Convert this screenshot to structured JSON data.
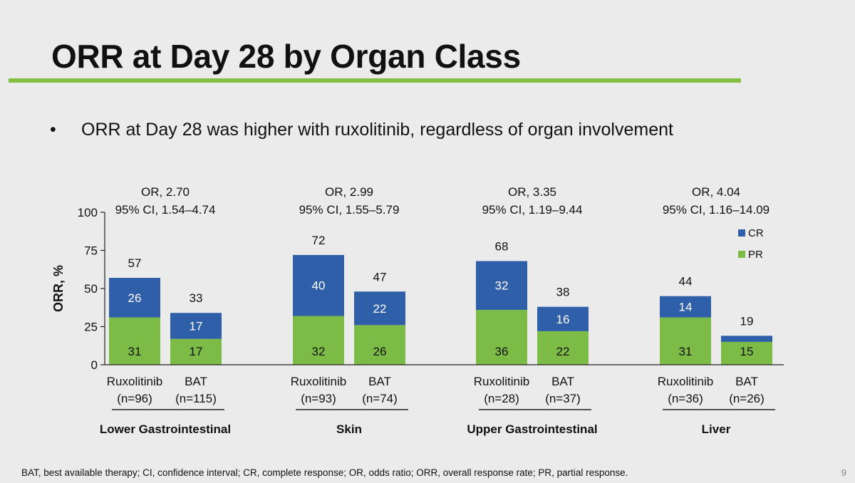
{
  "slide": {
    "title": "ORR at Day 28 by Organ Class",
    "bullet_marker": "•",
    "bullet": "ORR at Day 28 was higher with ruxolitinib, regardless of organ involvement",
    "footnote": "BAT, best available therapy; CI, confidence interval; CR, complete response; OR, odds ratio; ORR, overall response rate; PR, partial response.",
    "page_number": "9"
  },
  "colors": {
    "accent_rule": "#82bf42",
    "cr": "#2e5fa8",
    "pr": "#7cbb46"
  },
  "chart_data": {
    "type": "bar",
    "stacked": true,
    "ylabel": "ORR, %",
    "ylim": [
      0,
      100
    ],
    "yticks": [
      0,
      25,
      50,
      75,
      100
    ],
    "legend": {
      "placement": "top-right",
      "entries": [
        {
          "name": "CR",
          "color": "#2e5fa8"
        },
        {
          "name": "PR",
          "color": "#7cbb46"
        }
      ]
    },
    "groups": [
      {
        "name": "Lower Gastrointestinal",
        "or_text": "OR, 2.70",
        "ci_text": "95% CI, 1.54–4.74",
        "bars": [
          {
            "arm": "Ruxolitinib",
            "n": "(n=96)",
            "total": 57,
            "cr": 26,
            "pr": 31
          },
          {
            "arm": "BAT",
            "n": "(n=115)",
            "total": 33,
            "cr": 17,
            "pr": 17
          }
        ]
      },
      {
        "name": "Skin",
        "or_text": "OR, 2.99",
        "ci_text": "95% CI, 1.55–5.79",
        "bars": [
          {
            "arm": "Ruxolitinib",
            "n": "(n=93)",
            "total": 72,
            "cr": 40,
            "pr": 32
          },
          {
            "arm": "BAT",
            "n": "(n=74)",
            "total": 47,
            "cr": 22,
            "pr": 26
          }
        ]
      },
      {
        "name": "Upper Gastrointestinal",
        "or_text": "OR, 3.35",
        "ci_text": "95% CI, 1.19–9.44",
        "bars": [
          {
            "arm": "Ruxolitinib",
            "n": "(n=28)",
            "total": 68,
            "cr": 32,
            "pr": 36
          },
          {
            "arm": "BAT",
            "n": "(n=37)",
            "total": 38,
            "cr": 16,
            "pr": 22
          }
        ]
      },
      {
        "name": "Liver",
        "or_text": "OR, 4.04",
        "ci_text": "95% CI, 1.16–14.09",
        "bars": [
          {
            "arm": "Ruxolitinib",
            "n": "(n=36)",
            "total": 44,
            "cr": 14,
            "pr": 31
          },
          {
            "arm": "BAT",
            "n": "(n=26)",
            "total": 19,
            "cr": 4,
            "pr": 15
          }
        ]
      }
    ]
  }
}
